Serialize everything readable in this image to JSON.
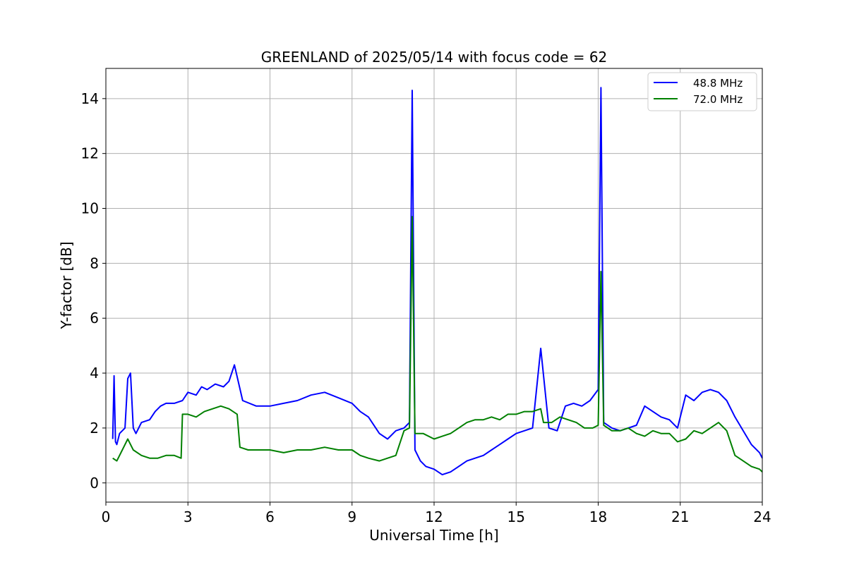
{
  "chart_data": {
    "type": "line",
    "title": "GREENLAND of 2025/05/14 with focus code = 62",
    "xlabel": "Universal Time [h]",
    "ylabel": "Y-factor [dB]",
    "xlim": [
      0,
      24
    ],
    "ylim": [
      -0.7,
      15.1
    ],
    "xticks": [
      0,
      3,
      6,
      9,
      12,
      15,
      18,
      21,
      24
    ],
    "yticks": [
      0,
      2,
      4,
      6,
      8,
      10,
      12,
      14
    ],
    "grid": true,
    "legend_position": "top-right",
    "series": [
      {
        "name": "48.8 MHz",
        "color": "#0000ff",
        "x": [
          0.25,
          0.3,
          0.35,
          0.4,
          0.5,
          0.7,
          0.8,
          0.9,
          1.0,
          1.1,
          1.3,
          1.6,
          1.8,
          2.0,
          2.2,
          2.5,
          2.8,
          3.0,
          3.3,
          3.5,
          3.7,
          4.0,
          4.3,
          4.5,
          4.7,
          5.0,
          5.5,
          6.0,
          6.5,
          7.0,
          7.5,
          8.0,
          8.5,
          9.0,
          9.3,
          9.6,
          10.0,
          10.3,
          10.6,
          10.9,
          11.1,
          11.2,
          11.3,
          11.5,
          11.7,
          12.0,
          12.3,
          12.6,
          12.9,
          13.2,
          13.5,
          13.8,
          14.1,
          14.4,
          14.7,
          15.0,
          15.3,
          15.6,
          15.9,
          16.2,
          16.5,
          16.8,
          17.1,
          17.4,
          17.7,
          18.0,
          18.1,
          18.2,
          18.5,
          18.8,
          19.1,
          19.4,
          19.7,
          20.0,
          20.3,
          20.6,
          20.9,
          21.2,
          21.5,
          21.8,
          22.1,
          22.4,
          22.7,
          23.0,
          23.3,
          23.6,
          23.9,
          24.0
        ],
        "values": [
          1.6,
          3.9,
          1.5,
          1.4,
          1.8,
          2.0,
          3.8,
          4.0,
          2.0,
          1.8,
          2.2,
          2.3,
          2.6,
          2.8,
          2.9,
          2.9,
          3.0,
          3.3,
          3.2,
          3.5,
          3.4,
          3.6,
          3.5,
          3.7,
          4.3,
          3.0,
          2.8,
          2.8,
          2.9,
          3.0,
          3.2,
          3.3,
          3.1,
          2.9,
          2.6,
          2.4,
          1.8,
          1.6,
          1.9,
          2.0,
          2.2,
          14.3,
          1.2,
          0.8,
          0.6,
          0.5,
          0.3,
          0.4,
          0.6,
          0.8,
          0.9,
          1.0,
          1.2,
          1.4,
          1.6,
          1.8,
          1.9,
          2.0,
          4.9,
          2.0,
          1.9,
          2.8,
          2.9,
          2.8,
          3.0,
          3.4,
          14.4,
          2.2,
          2.0,
          1.9,
          2.0,
          2.1,
          2.8,
          2.6,
          2.4,
          2.3,
          2.0,
          3.2,
          3.0,
          3.3,
          3.4,
          3.3,
          3.0,
          2.4,
          1.9,
          1.4,
          1.1,
          0.9
        ]
      },
      {
        "name": "72.0 MHz",
        "color": "#008000",
        "x": [
          0.25,
          0.4,
          0.6,
          0.8,
          1.0,
          1.3,
          1.6,
          1.9,
          2.2,
          2.5,
          2.75,
          2.8,
          3.0,
          3.3,
          3.6,
          3.9,
          4.2,
          4.5,
          4.8,
          4.9,
          5.2,
          5.5,
          6.0,
          6.5,
          7.0,
          7.5,
          8.0,
          8.5,
          9.0,
          9.3,
          9.6,
          10.0,
          10.3,
          10.6,
          10.9,
          11.1,
          11.2,
          11.3,
          11.6,
          12.0,
          12.3,
          12.6,
          12.9,
          13.2,
          13.5,
          13.8,
          14.1,
          14.4,
          14.7,
          15.0,
          15.3,
          15.6,
          15.9,
          16.0,
          16.3,
          16.6,
          16.9,
          17.2,
          17.5,
          17.8,
          18.0,
          18.1,
          18.2,
          18.5,
          18.8,
          19.1,
          19.4,
          19.7,
          20.0,
          20.3,
          20.6,
          20.9,
          21.2,
          21.5,
          21.8,
          22.1,
          22.4,
          22.7,
          23.0,
          23.3,
          23.6,
          23.9,
          24.0
        ],
        "values": [
          0.9,
          0.8,
          1.2,
          1.6,
          1.2,
          1.0,
          0.9,
          0.9,
          1.0,
          1.0,
          0.9,
          2.5,
          2.5,
          2.4,
          2.6,
          2.7,
          2.8,
          2.7,
          2.5,
          1.3,
          1.2,
          1.2,
          1.2,
          1.1,
          1.2,
          1.2,
          1.3,
          1.2,
          1.2,
          1.0,
          0.9,
          0.8,
          0.9,
          1.0,
          1.9,
          2.0,
          9.7,
          1.8,
          1.8,
          1.6,
          1.7,
          1.8,
          2.0,
          2.2,
          2.3,
          2.3,
          2.4,
          2.3,
          2.5,
          2.5,
          2.6,
          2.6,
          2.7,
          2.2,
          2.2,
          2.4,
          2.3,
          2.2,
          2.0,
          2.0,
          2.1,
          7.7,
          2.1,
          1.9,
          1.9,
          2.0,
          1.8,
          1.7,
          1.9,
          1.8,
          1.8,
          1.5,
          1.6,
          1.9,
          1.8,
          2.0,
          2.2,
          1.9,
          1.0,
          0.8,
          0.6,
          0.5,
          0.4
        ]
      }
    ]
  }
}
